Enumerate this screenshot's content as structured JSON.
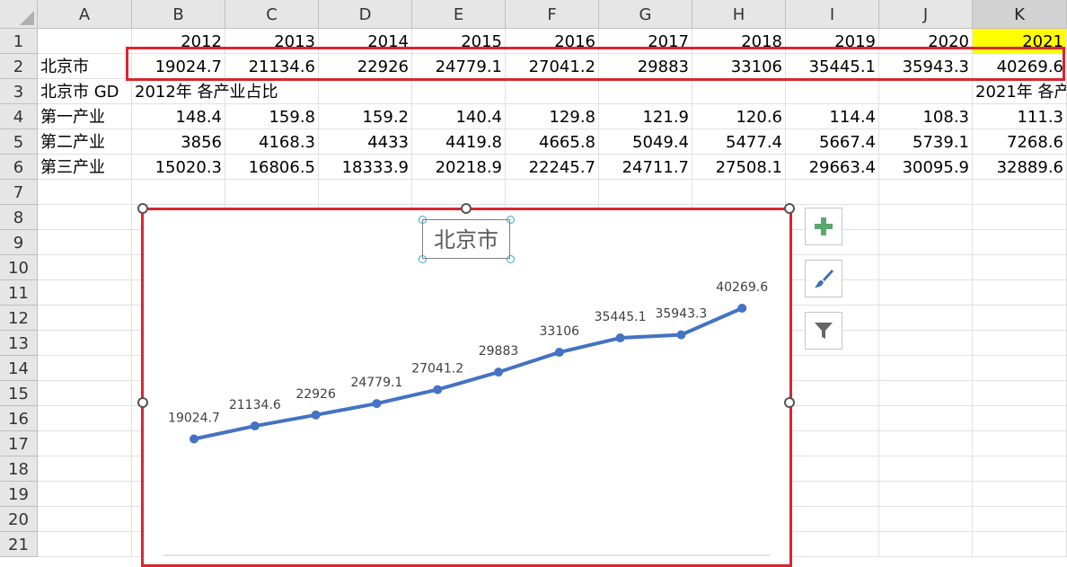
{
  "columns": [
    "A",
    "B",
    "C",
    "D",
    "E",
    "F",
    "G",
    "H",
    "I",
    "J",
    "K"
  ],
  "rows": [
    "1",
    "2",
    "3",
    "4",
    "5",
    "6",
    "7",
    "8",
    "9",
    "10",
    "11",
    "12",
    "13",
    "14",
    "15",
    "16",
    "17",
    "18",
    "19",
    "20",
    "21"
  ],
  "selected_column": "K",
  "years": [
    "2012",
    "2013",
    "2014",
    "2015",
    "2016",
    "2017",
    "2018",
    "2019",
    "2020",
    "2021"
  ],
  "beijing": {
    "label": "北京市",
    "values": [
      "19024.7",
      "21134.6",
      "22926",
      "24779.1",
      "27041.2",
      "29883",
      "33106",
      "35445.1",
      "35943.3",
      "40269.6"
    ]
  },
  "row3": {
    "a": "北京市 GD",
    "b": "2012年 各产业占比",
    "k": "2021年 各产"
  },
  "industries": [
    {
      "label": "第一产业",
      "values": [
        "148.4",
        "159.8",
        "159.2",
        "140.4",
        "129.8",
        "121.9",
        "120.6",
        "114.4",
        "108.3",
        "111.3"
      ]
    },
    {
      "label": "第二产业",
      "values": [
        "3856",
        "4168.3",
        "4433",
        "4419.8",
        "4665.8",
        "5049.4",
        "5477.4",
        "5667.4",
        "5739.1",
        "7268.6"
      ]
    },
    {
      "label": "第三产业",
      "values": [
        "15020.3",
        "16806.5",
        "18333.9",
        "20218.9",
        "22245.7",
        "24711.7",
        "27508.1",
        "29663.4",
        "30095.9",
        "32889.6"
      ]
    }
  ],
  "chart_data": {
    "type": "line",
    "title": "北京市",
    "categories": [
      "2012",
      "2013",
      "2014",
      "2015",
      "2016",
      "2017",
      "2018",
      "2019",
      "2020",
      "2021"
    ],
    "series": [
      {
        "values": [
          19024.7,
          21134.6,
          22926,
          24779.1,
          27041.2,
          29883,
          33106,
          35445.1,
          35943.3,
          40269.6
        ]
      }
    ],
    "data_labels": [
      "19024.7",
      "21134.6",
      "22926",
      "24779.1",
      "27041.2",
      "29883",
      "33106",
      "35445.1",
      "35943.3",
      "40269.6"
    ],
    "legend": "none",
    "grid": false,
    "colors": {
      "line": "#4472c4",
      "label": "#404040"
    }
  },
  "side_buttons": [
    {
      "name": "chart-elements-button",
      "icon": "plus-icon"
    },
    {
      "name": "chart-styles-button",
      "icon": "paintbrush-icon"
    },
    {
      "name": "chart-filters-button",
      "icon": "funnel-icon"
    }
  ],
  "colors": {
    "selection_red": "#d8262f",
    "highlight_yellow": "#ffff00",
    "header_gray": "#e6e6e6"
  }
}
